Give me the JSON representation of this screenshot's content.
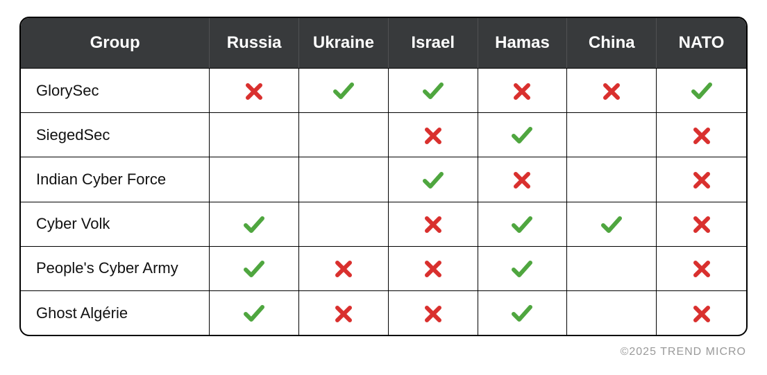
{
  "type": "table",
  "header_bg": "#383a3c",
  "header_fg": "#ffffff",
  "check_color": "#4fa63f",
  "cross_color": "#d9302e",
  "muted_color": "#9a9a9a",
  "border_color": "#000000",
  "background_color": "#ffffff",
  "font_family": "sans-serif",
  "header_fontsize": 24,
  "cell_fontsize": 22,
  "copyright": "©2025 TREND MICRO",
  "columns": [
    "Group",
    "Russia",
    "Ukraine",
    "Israel",
    "Hamas",
    "China",
    "NATO"
  ],
  "col_widths_pct": [
    26,
    12.3,
    12.3,
    12.3,
    12.3,
    12.3,
    12.3
  ],
  "rows": [
    {
      "label": "GlorySec",
      "cells": [
        "cross",
        "check",
        "check",
        "cross",
        "cross",
        "check"
      ]
    },
    {
      "label": "SiegedSec",
      "cells": [
        "",
        "",
        "cross",
        "check",
        "",
        "cross"
      ]
    },
    {
      "label": "Indian Cyber Force",
      "cells": [
        "",
        "",
        "check",
        "cross",
        "",
        "cross"
      ]
    },
    {
      "label": "Cyber Volk",
      "cells": [
        "check",
        "",
        "cross",
        "check",
        "check",
        "cross"
      ]
    },
    {
      "label": "People's Cyber Army",
      "cells": [
        "check",
        "cross",
        "cross",
        "check",
        "",
        "cross"
      ]
    },
    {
      "label": "Ghost Algérie",
      "cells": [
        "check",
        "cross",
        "cross",
        "check",
        "",
        "cross"
      ]
    }
  ]
}
